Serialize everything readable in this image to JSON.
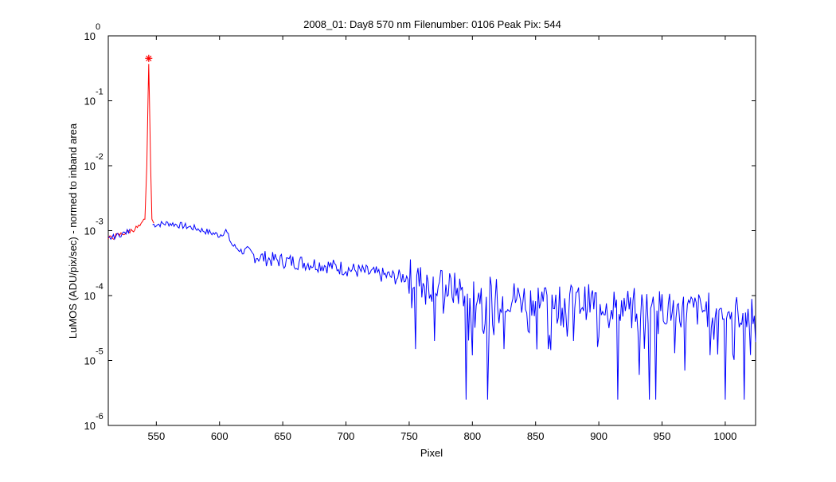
{
  "window": {
    "background": "#ffffff"
  },
  "chart_data": {
    "type": "line",
    "title": "2008_01: Day8  570 nm  Filenumber: 0106 Peak Pix: 544",
    "xlabel": "Pixel",
    "ylabel": "LuMOS (ADU/pix/sec) - normed to inband area",
    "yscale": "log",
    "xlim": [
      512,
      1024
    ],
    "ylim": [
      1e-06,
      1
    ],
    "x_ticks": [
      550,
      600,
      650,
      700,
      750,
      800,
      850,
      900,
      950,
      1000
    ],
    "y_ticks": [
      {
        "value": 1,
        "base": "10",
        "exp": "0"
      },
      {
        "value": 0.1,
        "base": "10",
        "exp": "-1"
      },
      {
        "value": 0.01,
        "base": "10",
        "exp": "-2"
      },
      {
        "value": 0.001,
        "base": "10",
        "exp": "-3"
      },
      {
        "value": 0.0001,
        "base": "10",
        "exp": "-4"
      },
      {
        "value": 1e-05,
        "base": "10",
        "exp": "-5"
      },
      {
        "value": 1e-06,
        "base": "10",
        "exp": "-6"
      }
    ],
    "grid": false,
    "legend": "none",
    "series": [
      {
        "role": "spectrum",
        "color": "#0000ff",
        "x": [
          512,
          520,
          530,
          535,
          540,
          560,
          580,
          600,
          605,
          610,
          620,
          640,
          660,
          680,
          700,
          720,
          740,
          752,
          760,
          780,
          800,
          820,
          840,
          860,
          880,
          900,
          920,
          940,
          960,
          980,
          1000,
          1020,
          1024
        ],
        "y": [
          0.00075,
          0.00085,
          0.001,
          0.0011,
          0.0012,
          0.0013,
          0.0011,
          0.00085,
          0.001,
          0.0006,
          0.00045,
          0.00036,
          0.00033,
          0.0003,
          0.00026,
          0.00022,
          0.00019,
          0.0002,
          0.00016,
          0.00013,
          0.00011,
          0.0001,
          9e-05,
          9e-05,
          8e-05,
          8e-05,
          7e-05,
          7e-05,
          6e-05,
          6e-05,
          6e-05,
          5e-05,
          9e-05
        ],
        "noise_dips": [
          {
            "x": 755,
            "y": 1.5e-05
          },
          {
            "x": 770,
            "y": 2e-05
          },
          {
            "x": 795,
            "y": 2.5e-06
          },
          {
            "x": 800,
            "y": 1.2e-05
          },
          {
            "x": 812,
            "y": 2.5e-06
          },
          {
            "x": 825,
            "y": 1.5e-05
          },
          {
            "x": 860,
            "y": 1.5e-05
          },
          {
            "x": 880,
            "y": 2e-05
          },
          {
            "x": 915,
            "y": 2.5e-06
          },
          {
            "x": 932,
            "y": 6e-06
          },
          {
            "x": 940,
            "y": 2.5e-06
          },
          {
            "x": 945,
            "y": 2.5e-06
          },
          {
            "x": 968,
            "y": 7e-06
          },
          {
            "x": 1000,
            "y": 2.5e-06
          },
          {
            "x": 1015,
            "y": 2.5e-06
          }
        ]
      },
      {
        "role": "peak",
        "color": "#ff0000",
        "x": [
          512,
          520,
          530,
          538,
          541,
          542.5,
          543.5,
          544,
          544.5,
          545.5,
          546.5,
          548
        ],
        "y": [
          0.00075,
          0.00085,
          0.001,
          0.0012,
          0.0015,
          0.01,
          0.12,
          0.37,
          0.12,
          0.01,
          0.0015,
          0.0013
        ]
      }
    ],
    "marker": {
      "x": 544,
      "y": 0.45,
      "symbol": "*",
      "color": "#ff0000"
    }
  }
}
